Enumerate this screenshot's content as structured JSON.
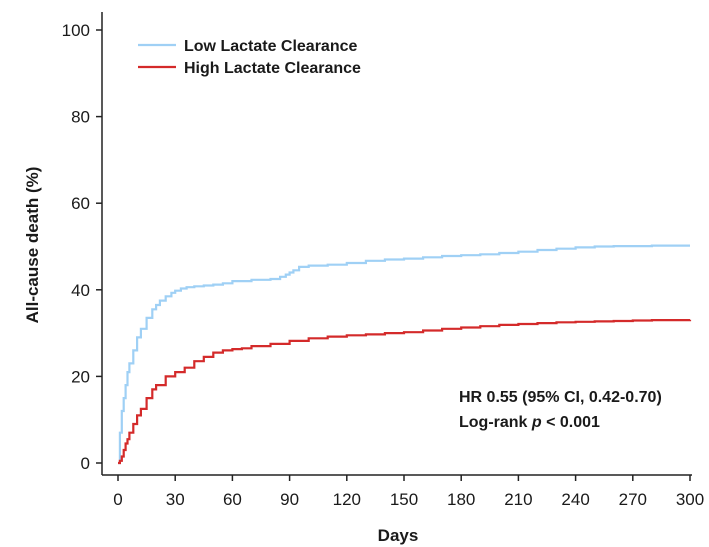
{
  "chart_data": {
    "type": "line",
    "title": "",
    "xlabel": "Days",
    "ylabel": "All-cause death (%)",
    "xlim": [
      0,
      300
    ],
    "ylim": [
      0,
      100
    ],
    "xticks": [
      0,
      30,
      60,
      90,
      120,
      150,
      180,
      210,
      240,
      270,
      300
    ],
    "yticks": [
      0,
      20,
      40,
      60,
      80,
      100
    ],
    "grid": false,
    "legend_position": "top-left",
    "series": [
      {
        "name": "Low Lactate Clearance",
        "color": "#9fd0f5",
        "x": [
          0,
          1,
          2,
          3,
          4,
          5,
          6,
          8,
          10,
          12,
          15,
          18,
          20,
          22,
          25,
          28,
          30,
          33,
          36,
          40,
          45,
          50,
          55,
          60,
          70,
          80,
          85,
          88,
          90,
          92,
          95,
          100,
          110,
          120,
          130,
          140,
          150,
          160,
          170,
          180,
          190,
          200,
          210,
          220,
          230,
          240,
          250,
          260,
          270,
          280,
          290,
          300
        ],
        "y": [
          0,
          7,
          12,
          15,
          18,
          21,
          23,
          26,
          29,
          31,
          33.5,
          35.5,
          36.5,
          37.5,
          38.5,
          39.3,
          39.8,
          40.3,
          40.6,
          40.8,
          41,
          41.2,
          41.5,
          42,
          42.3,
          42.5,
          43,
          43.5,
          44,
          44.5,
          45.3,
          45.6,
          45.8,
          46.2,
          46.7,
          47,
          47.2,
          47.5,
          47.8,
          48,
          48.2,
          48.5,
          48.8,
          49.2,
          49.5,
          49.8,
          50,
          50.1,
          50.1,
          50.2,
          50.2,
          50.2
        ]
      },
      {
        "name": "High Lactate Clearance",
        "color": "#d42a2a",
        "x": [
          0,
          1,
          2,
          3,
          4,
          5,
          6,
          8,
          10,
          12,
          15,
          18,
          20,
          25,
          30,
          35,
          40,
          45,
          50,
          55,
          60,
          65,
          70,
          80,
          90,
          100,
          110,
          120,
          130,
          140,
          150,
          160,
          170,
          180,
          190,
          200,
          210,
          220,
          230,
          240,
          250,
          260,
          270,
          280,
          290,
          300
        ],
        "y": [
          0,
          0.5,
          1.5,
          3,
          4.5,
          5.5,
          7,
          9,
          11,
          12.5,
          15,
          17,
          18,
          20,
          21,
          22,
          23.5,
          24.5,
          25.5,
          26,
          26.3,
          26.5,
          27,
          27.5,
          28.2,
          28.8,
          29.2,
          29.5,
          29.7,
          30,
          30.2,
          30.6,
          31,
          31.3,
          31.6,
          31.9,
          32.1,
          32.3,
          32.5,
          32.6,
          32.7,
          32.8,
          32.9,
          33,
          33,
          33.1
        ]
      }
    ],
    "annotations": {
      "line1": "HR 0.55 (95% CI, 0.42-0.70)",
      "line2_prefix": "Log-rank ",
      "line2_italic": "p",
      "line2_suffix": " < 0.001"
    }
  }
}
